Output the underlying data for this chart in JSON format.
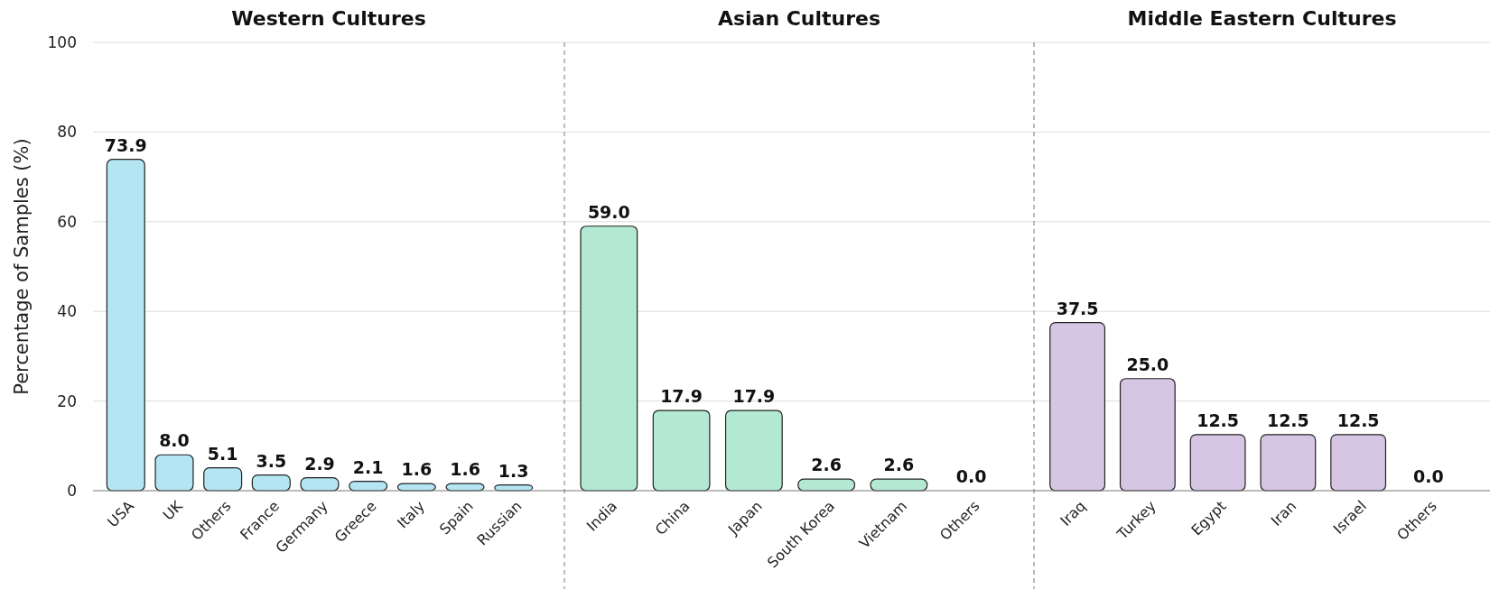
{
  "chart_data": [
    {
      "type": "bar",
      "title": "Western Cultures",
      "ylabel": "Percentage of Samples (%)",
      "categories": [
        "USA",
        "UK",
        "Others",
        "France",
        "Germany",
        "Greece",
        "Italy",
        "Spain",
        "Russian"
      ],
      "values": [
        73.9,
        8.0,
        5.1,
        3.5,
        2.9,
        2.1,
        1.6,
        1.6,
        1.3
      ],
      "value_labels": [
        "73.9",
        "8.0",
        "5.1",
        "3.5",
        "2.9",
        "2.1",
        "1.6",
        "1.6",
        "1.3"
      ],
      "color": "#b3e5f2",
      "ylim": [
        0,
        100
      ],
      "yticks": [
        0,
        20,
        40,
        60,
        80,
        100
      ],
      "grid": "y"
    },
    {
      "type": "bar",
      "title": "Asian Cultures",
      "categories": [
        "India",
        "China",
        "Japan",
        "South Korea",
        "Vietnam",
        "Others"
      ],
      "values": [
        59.0,
        17.9,
        17.9,
        2.6,
        2.6,
        0.0
      ],
      "value_labels": [
        "59.0",
        "17.9",
        "17.9",
        "2.6",
        "2.6",
        "0.0"
      ],
      "color": "#b3e8d2",
      "ylim": [
        0,
        100
      ],
      "yticks": [
        0,
        20,
        40,
        60,
        80,
        100
      ],
      "grid": "y",
      "tick_labels": "x"
    },
    {
      "type": "bar",
      "title": "Middle Eastern Cultures",
      "categories": [
        "Iraq",
        "Turkey",
        "Egypt",
        "Iran",
        "Israel",
        "Others"
      ],
      "values": [
        37.5,
        25.0,
        12.5,
        12.5,
        12.5,
        0.0
      ],
      "value_labels": [
        "37.5",
        "25.0",
        "12.5",
        "12.5",
        "12.5",
        "0.0"
      ],
      "color": "#d6c6e3",
      "ylim": [
        0,
        100
      ],
      "yticks": [
        0,
        20,
        40,
        60,
        80,
        100
      ],
      "grid": "y",
      "tick_labels": "x"
    }
  ]
}
